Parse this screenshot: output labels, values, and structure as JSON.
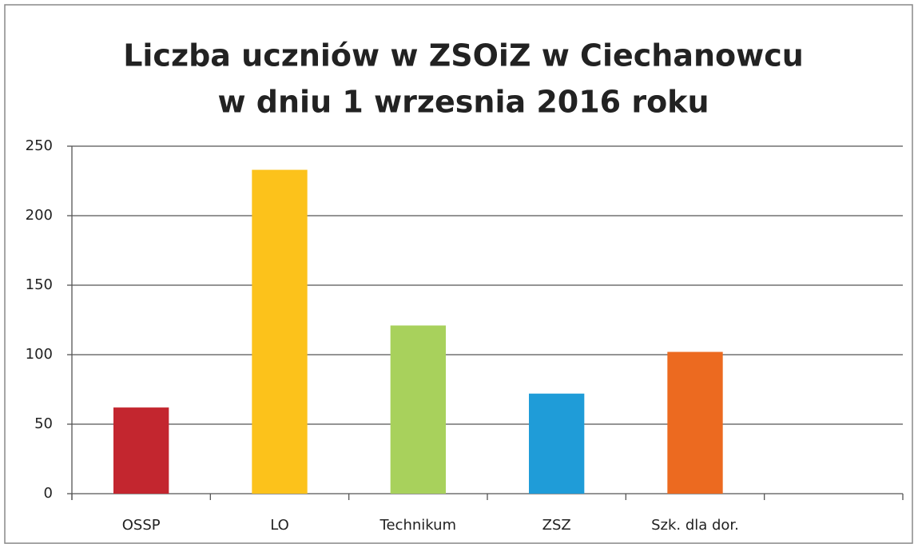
{
  "chart_data": {
    "type": "bar",
    "title": [
      "Liczba uczniów w ZSOiZ w Ciechanowcu",
      "w dniu 1 wrzesnia 2016 roku"
    ],
    "categories": [
      "OSSP",
      "LO",
      "Technikum",
      "ZSZ",
      "Szk. dla dor.",
      null
    ],
    "values": [
      62,
      233,
      121,
      72,
      102,
      null
    ],
    "colors": [
      "#c3262f",
      "#fcc21b",
      "#a8d15c",
      "#1f9cd8",
      "#ec6a20",
      null
    ],
    "ylim": [
      0,
      250
    ],
    "yticks": [
      0,
      50,
      100,
      150,
      200,
      250
    ],
    "grid": true
  }
}
